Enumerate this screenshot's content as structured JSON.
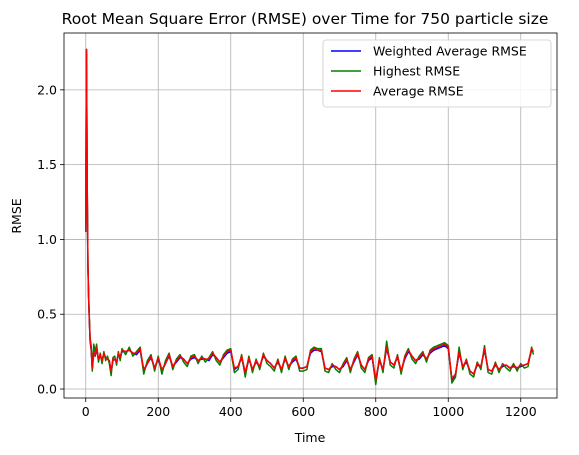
{
  "chart_data": {
    "type": "line",
    "title": "Root Mean Square Error (RMSE) over Time for 750 particle size",
    "xlabel": "Time",
    "ylabel": "RMSE",
    "xlim": [
      -60,
      1300
    ],
    "ylim": [
      -0.06,
      2.38
    ],
    "xticks": [
      0,
      200,
      400,
      600,
      800,
      1000,
      1200
    ],
    "xtick_labels": [
      "0",
      "200",
      "400",
      "600",
      "800",
      "1000",
      "1200"
    ],
    "yticks": [
      0.0,
      0.5,
      1.0,
      1.5,
      2.0
    ],
    "ytick_labels": [
      "0.0",
      "0.5",
      "1.0",
      "1.5",
      "2.0"
    ],
    "grid": true,
    "legend_position": "top-right",
    "x": [
      0,
      2,
      4,
      6,
      8,
      10,
      12,
      15,
      18,
      22,
      26,
      30,
      35,
      40,
      45,
      50,
      55,
      60,
      65,
      70,
      75,
      80,
      85,
      90,
      95,
      100,
      110,
      120,
      130,
      140,
      150,
      160,
      170,
      180,
      190,
      200,
      210,
      220,
      230,
      240,
      250,
      260,
      270,
      280,
      290,
      300,
      310,
      320,
      330,
      340,
      350,
      360,
      370,
      380,
      390,
      400,
      410,
      420,
      430,
      440,
      450,
      460,
      470,
      480,
      490,
      500,
      510,
      520,
      530,
      540,
      550,
      560,
      570,
      580,
      590,
      600,
      610,
      620,
      630,
      640,
      650,
      660,
      670,
      680,
      690,
      700,
      710,
      720,
      730,
      740,
      750,
      760,
      770,
      780,
      790,
      800,
      810,
      820,
      830,
      840,
      850,
      860,
      870,
      880,
      890,
      900,
      910,
      920,
      930,
      940,
      950,
      960,
      970,
      980,
      990,
      1000,
      1010,
      1020,
      1030,
      1040,
      1050,
      1060,
      1070,
      1080,
      1090,
      1100,
      1110,
      1120,
      1130,
      1140,
      1150,
      1160,
      1170,
      1180,
      1190,
      1200,
      1210,
      1220,
      1230,
      1235
    ],
    "series": [
      {
        "name": "Weighted Average RMSE",
        "color": "#0000ff",
        "values": [
          1.05,
          2.27,
          1.35,
          0.82,
          0.6,
          0.45,
          0.32,
          0.26,
          0.13,
          0.24,
          0.22,
          0.27,
          0.2,
          0.22,
          0.19,
          0.23,
          0.21,
          0.2,
          0.19,
          0.11,
          0.19,
          0.2,
          0.18,
          0.23,
          0.21,
          0.25,
          0.25,
          0.26,
          0.24,
          0.23,
          0.26,
          0.12,
          0.17,
          0.21,
          0.14,
          0.2,
          0.12,
          0.17,
          0.22,
          0.15,
          0.18,
          0.21,
          0.2,
          0.17,
          0.2,
          0.21,
          0.19,
          0.2,
          0.2,
          0.19,
          0.23,
          0.21,
          0.18,
          0.21,
          0.24,
          0.25,
          0.13,
          0.15,
          0.21,
          0.1,
          0.2,
          0.13,
          0.18,
          0.15,
          0.22,
          0.19,
          0.17,
          0.14,
          0.18,
          0.13,
          0.2,
          0.15,
          0.18,
          0.2,
          0.14,
          0.14,
          0.15,
          0.24,
          0.26,
          0.26,
          0.25,
          0.14,
          0.13,
          0.15,
          0.15,
          0.13,
          0.15,
          0.19,
          0.13,
          0.18,
          0.23,
          0.16,
          0.13,
          0.19,
          0.21,
          0.05,
          0.19,
          0.13,
          0.27,
          0.18,
          0.16,
          0.21,
          0.12,
          0.2,
          0.25,
          0.22,
          0.19,
          0.2,
          0.23,
          0.2,
          0.24,
          0.26,
          0.27,
          0.28,
          0.29,
          0.27,
          0.06,
          0.1,
          0.24,
          0.15,
          0.18,
          0.12,
          0.1,
          0.16,
          0.15,
          0.26,
          0.13,
          0.12,
          0.16,
          0.13,
          0.15,
          0.16,
          0.14,
          0.15,
          0.14,
          0.15,
          0.16,
          0.17,
          0.26,
          0.25
        ]
      },
      {
        "name": "Highest RMSE",
        "color": "#008000",
        "values": [
          1.06,
          2.27,
          1.36,
          0.84,
          0.62,
          0.47,
          0.34,
          0.29,
          0.12,
          0.3,
          0.25,
          0.3,
          0.18,
          0.24,
          0.17,
          0.25,
          0.19,
          0.22,
          0.17,
          0.09,
          0.21,
          0.22,
          0.16,
          0.25,
          0.19,
          0.27,
          0.23,
          0.28,
          0.22,
          0.25,
          0.28,
          0.1,
          0.19,
          0.23,
          0.12,
          0.22,
          0.1,
          0.19,
          0.24,
          0.13,
          0.2,
          0.23,
          0.18,
          0.15,
          0.22,
          0.23,
          0.17,
          0.22,
          0.18,
          0.21,
          0.25,
          0.19,
          0.16,
          0.23,
          0.26,
          0.27,
          0.11,
          0.13,
          0.23,
          0.08,
          0.22,
          0.11,
          0.2,
          0.13,
          0.24,
          0.17,
          0.15,
          0.12,
          0.2,
          0.11,
          0.22,
          0.13,
          0.2,
          0.22,
          0.12,
          0.12,
          0.13,
          0.26,
          0.28,
          0.27,
          0.27,
          0.12,
          0.11,
          0.17,
          0.13,
          0.11,
          0.17,
          0.21,
          0.11,
          0.2,
          0.25,
          0.14,
          0.11,
          0.21,
          0.23,
          0.03,
          0.21,
          0.11,
          0.32,
          0.16,
          0.14,
          0.23,
          0.1,
          0.22,
          0.27,
          0.2,
          0.17,
          0.22,
          0.25,
          0.18,
          0.26,
          0.28,
          0.29,
          0.3,
          0.31,
          0.29,
          0.04,
          0.08,
          0.28,
          0.13,
          0.2,
          0.1,
          0.08,
          0.18,
          0.13,
          0.29,
          0.11,
          0.1,
          0.18,
          0.11,
          0.17,
          0.14,
          0.12,
          0.17,
          0.12,
          0.17,
          0.14,
          0.15,
          0.28,
          0.23
        ]
      },
      {
        "name": "Average RMSE",
        "color": "#ff0000",
        "values": [
          1.05,
          2.27,
          1.35,
          0.83,
          0.61,
          0.46,
          0.33,
          0.27,
          0.14,
          0.25,
          0.22,
          0.28,
          0.2,
          0.23,
          0.19,
          0.24,
          0.21,
          0.2,
          0.19,
          0.12,
          0.2,
          0.2,
          0.18,
          0.24,
          0.21,
          0.26,
          0.25,
          0.26,
          0.24,
          0.24,
          0.27,
          0.13,
          0.17,
          0.22,
          0.14,
          0.21,
          0.13,
          0.17,
          0.23,
          0.15,
          0.19,
          0.22,
          0.2,
          0.17,
          0.21,
          0.22,
          0.19,
          0.21,
          0.2,
          0.2,
          0.24,
          0.21,
          0.18,
          0.22,
          0.25,
          0.26,
          0.14,
          0.15,
          0.22,
          0.11,
          0.21,
          0.13,
          0.19,
          0.15,
          0.23,
          0.19,
          0.17,
          0.14,
          0.19,
          0.13,
          0.21,
          0.15,
          0.19,
          0.21,
          0.14,
          0.14,
          0.15,
          0.25,
          0.27,
          0.26,
          0.26,
          0.14,
          0.13,
          0.16,
          0.15,
          0.13,
          0.16,
          0.2,
          0.13,
          0.19,
          0.24,
          0.16,
          0.13,
          0.2,
          0.22,
          0.06,
          0.2,
          0.13,
          0.28,
          0.18,
          0.16,
          0.22,
          0.12,
          0.21,
          0.26,
          0.22,
          0.19,
          0.21,
          0.24,
          0.2,
          0.25,
          0.27,
          0.28,
          0.29,
          0.3,
          0.28,
          0.07,
          0.1,
          0.25,
          0.15,
          0.19,
          0.12,
          0.1,
          0.17,
          0.15,
          0.27,
          0.13,
          0.12,
          0.17,
          0.13,
          0.16,
          0.16,
          0.14,
          0.16,
          0.14,
          0.16,
          0.16,
          0.17,
          0.27,
          0.25
        ]
      }
    ]
  }
}
